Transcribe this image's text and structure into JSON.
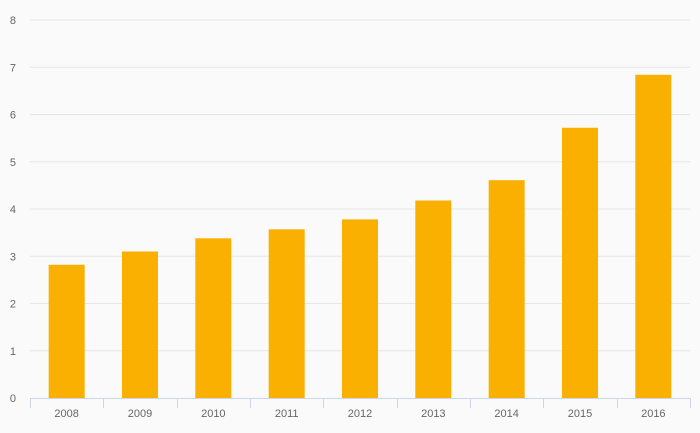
{
  "chart_data": {
    "type": "bar",
    "title": "",
    "xlabel": "",
    "ylabel": "",
    "categories": [
      "2008",
      "2009",
      "2010",
      "2011",
      "2012",
      "2013",
      "2014",
      "2015",
      "2016"
    ],
    "values": [
      2.82,
      3.1,
      3.38,
      3.57,
      3.78,
      4.18,
      4.61,
      5.72,
      6.84
    ],
    "ylim": [
      0,
      8
    ],
    "yticks": [
      "0",
      "1",
      "2",
      "3",
      "4",
      "5",
      "6",
      "7",
      "8"
    ],
    "grid": true,
    "colors": {
      "bar": "#f9b000",
      "grid": "#e6e6e6",
      "axis": "#ccd6eb",
      "text": "#666666",
      "background": "#fafafa"
    }
  }
}
